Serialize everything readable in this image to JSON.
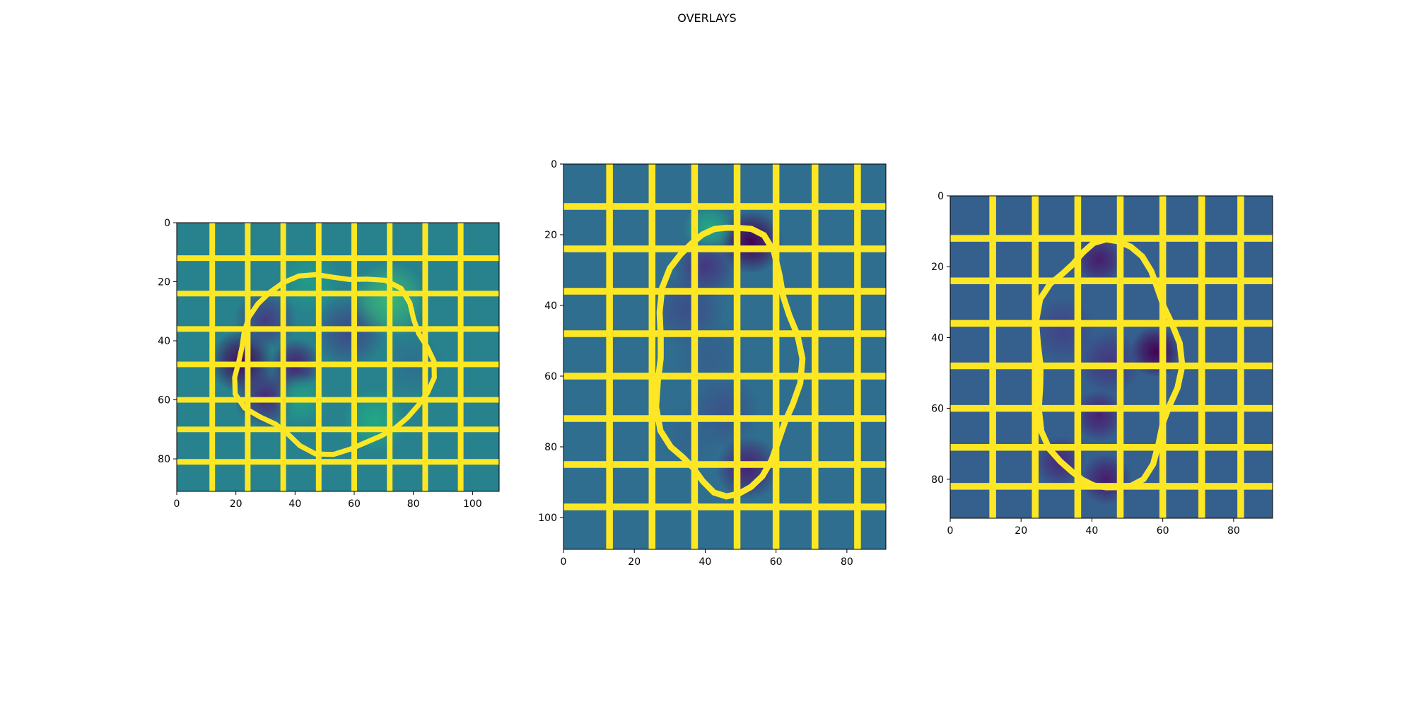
{
  "figure": {
    "suptitle": "OVERLAYS"
  },
  "colors": {
    "boundary": "#fde725",
    "frame": "#000000",
    "background": "#ffffff",
    "colormap": "viridis"
  },
  "chart_data": [
    {
      "type": "heatmap",
      "title": "",
      "xlabel": "",
      "ylabel": "",
      "xlim": [
        0,
        109
      ],
      "ylim": [
        91,
        0
      ],
      "xticks": [
        0,
        20,
        40,
        60,
        80,
        100
      ],
      "yticks": [
        0,
        20,
        40,
        60,
        80
      ],
      "background_value": 0.55,
      "v_boundaries": [
        [
          12,
          0,
          12,
          91
        ],
        [
          24,
          0,
          24,
          91
        ],
        [
          36,
          0,
          36,
          91
        ],
        [
          48,
          0,
          48,
          91
        ],
        [
          60,
          0,
          60,
          91
        ],
        [
          72,
          0,
          72,
          91
        ],
        [
          84,
          0,
          84,
          91
        ],
        [
          96,
          0,
          96,
          91
        ]
      ],
      "h_boundaries": [
        [
          0,
          12,
          109,
          12
        ],
        [
          0,
          24,
          109,
          24
        ],
        [
          0,
          36,
          109,
          36
        ],
        [
          0,
          48,
          109,
          48
        ],
        [
          0,
          60,
          109,
          60
        ],
        [
          0,
          70,
          109,
          70
        ],
        [
          0,
          81,
          109,
          81
        ]
      ],
      "region": {
        "cx": 53,
        "cy": 47,
        "rx": 33,
        "ry": 30
      },
      "blobs": [
        {
          "x": 22,
          "y": 47,
          "v": 0.02,
          "s": 6
        },
        {
          "x": 30,
          "y": 59,
          "v": 0.15,
          "s": 6
        },
        {
          "x": 40,
          "y": 48,
          "v": 0.12,
          "s": 5
        },
        {
          "x": 58,
          "y": 37,
          "v": 0.28,
          "s": 7
        },
        {
          "x": 30,
          "y": 33,
          "v": 0.22,
          "s": 6
        },
        {
          "x": 72,
          "y": 26,
          "v": 0.8,
          "s": 7
        },
        {
          "x": 67,
          "y": 67,
          "v": 0.75,
          "s": 6
        },
        {
          "x": 42,
          "y": 60,
          "v": 0.7,
          "s": 5
        },
        {
          "x": 45,
          "y": 20,
          "v": 0.68,
          "s": 6
        },
        {
          "x": 80,
          "y": 48,
          "v": 0.45,
          "s": 6
        }
      ]
    },
    {
      "type": "heatmap",
      "title": "",
      "xlabel": "",
      "ylabel": "",
      "xlim": [
        0,
        91
      ],
      "ylim": [
        109,
        0
      ],
      "xticks": [
        0,
        20,
        40,
        60,
        80
      ],
      "yticks": [
        0,
        20,
        40,
        60,
        80,
        100
      ],
      "background_value": 0.45,
      "v_boundaries": [
        [
          13,
          0,
          13,
          109
        ],
        [
          25,
          0,
          25,
          109
        ],
        [
          37,
          0,
          37,
          109
        ],
        [
          49,
          0,
          49,
          109
        ],
        [
          60,
          0,
          60,
          109
        ],
        [
          71,
          0,
          71,
          109
        ],
        [
          83,
          0,
          83,
          109
        ]
      ],
      "h_boundaries": [
        [
          0,
          12,
          91,
          12
        ],
        [
          0,
          24,
          91,
          24
        ],
        [
          0,
          36,
          91,
          36
        ],
        [
          0,
          48,
          91,
          48
        ],
        [
          0,
          60,
          91,
          60
        ],
        [
          0,
          72,
          91,
          72
        ],
        [
          0,
          85,
          91,
          85
        ],
        [
          0,
          97,
          91,
          97
        ]
      ],
      "region": {
        "cx": 46,
        "cy": 55,
        "rx": 20,
        "ry": 38
      },
      "blobs": [
        {
          "x": 53,
          "y": 22,
          "v": 0.0,
          "s": 5
        },
        {
          "x": 40,
          "y": 29,
          "v": 0.2,
          "s": 5
        },
        {
          "x": 41,
          "y": 18,
          "v": 0.75,
          "s": 4
        },
        {
          "x": 35,
          "y": 41,
          "v": 0.3,
          "s": 6
        },
        {
          "x": 45,
          "y": 70,
          "v": 0.32,
          "s": 6
        },
        {
          "x": 52,
          "y": 86,
          "v": 0.12,
          "s": 5
        },
        {
          "x": 41,
          "y": 54,
          "v": 0.38,
          "s": 6
        },
        {
          "x": 37,
          "y": 77,
          "v": 0.4,
          "s": 5
        }
      ]
    },
    {
      "type": "heatmap",
      "title": "",
      "xlabel": "",
      "ylabel": "",
      "xlim": [
        0,
        91
      ],
      "ylim": [
        91,
        0
      ],
      "xticks": [
        0,
        20,
        40,
        60,
        80
      ],
      "yticks": [
        0,
        20,
        40,
        60,
        80
      ],
      "background_value": 0.38,
      "v_boundaries": [
        [
          12,
          0,
          12,
          91
        ],
        [
          24,
          0,
          24,
          91
        ],
        [
          36,
          0,
          36,
          91
        ],
        [
          48,
          0,
          48,
          91
        ],
        [
          60,
          0,
          60,
          91
        ],
        [
          71,
          0,
          71,
          91
        ],
        [
          82,
          0,
          82,
          91
        ]
      ],
      "h_boundaries": [
        [
          0,
          12,
          91,
          12
        ],
        [
          0,
          24,
          91,
          24
        ],
        [
          0,
          36,
          91,
          36
        ],
        [
          0,
          48,
          91,
          48
        ],
        [
          0,
          60,
          91,
          60
        ],
        [
          0,
          71,
          91,
          71
        ],
        [
          0,
          82,
          91,
          82
        ]
      ],
      "region": {
        "cx": 44,
        "cy": 48,
        "rx": 20,
        "ry": 35
      },
      "blobs": [
        {
          "x": 58,
          "y": 44,
          "v": 0.0,
          "s": 4
        },
        {
          "x": 42,
          "y": 18,
          "v": 0.1,
          "s": 4
        },
        {
          "x": 42,
          "y": 62,
          "v": 0.12,
          "s": 4
        },
        {
          "x": 31,
          "y": 75,
          "v": 0.15,
          "s": 4
        },
        {
          "x": 44,
          "y": 80,
          "v": 0.1,
          "s": 4
        },
        {
          "x": 32,
          "y": 38,
          "v": 0.25,
          "s": 5
        },
        {
          "x": 45,
          "y": 47,
          "v": 0.2,
          "s": 5
        }
      ]
    }
  ]
}
